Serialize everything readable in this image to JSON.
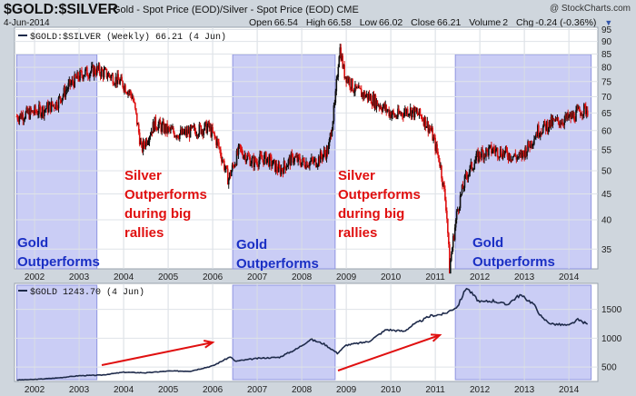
{
  "header": {
    "symbol": "$GOLD:$SILVER",
    "description": "Gold - Spot Price (EOD)/Silver - Spot Price (EOD) CME",
    "logo": "@ StockCharts.com",
    "date": "4-Jun-2014",
    "open_label": "Open",
    "open": "66.54",
    "high_label": "High",
    "high": "66.58",
    "low_label": "Low",
    "low": "66.02",
    "close_label": "Close",
    "close": "66.21",
    "volume_label": "Volume",
    "volume": "2",
    "chg_label": "Chg",
    "chg": "-0.24 (-0.36%)"
  },
  "colors": {
    "background": "#cfd6dd",
    "panel": "#ffffff",
    "shade": "#b8bcf2",
    "up": "#111111",
    "down": "#dd1111",
    "gold_line": "#1e2a4a",
    "annotation_red": "#e01010",
    "annotation_blue": "#1a2fc4"
  },
  "chart_data": [
    {
      "type": "candlestick",
      "title": "$GOLD:$SILVER (Weekly) 66.21 (4 Jun)",
      "x_tick_labels": [
        "2002",
        "2003",
        "2004",
        "2005",
        "2006",
        "2007",
        "2008",
        "2009",
        "2010",
        "2011",
        "2012",
        "2013",
        "2014"
      ],
      "y_tick_labels": [
        "35",
        "40",
        "45",
        "50",
        "55",
        "60",
        "65",
        "70",
        "75",
        "80",
        "85",
        "90",
        "95"
      ],
      "y_scale": "log",
      "ylim": [
        32,
        96
      ],
      "series_points": [
        [
          "2001.6",
          64
        ],
        [
          "2001.9",
          65
        ],
        [
          "2002.2",
          66
        ],
        [
          "2002.5",
          68
        ],
        [
          "2002.8",
          74
        ],
        [
          "2003.1",
          78
        ],
        [
          "2003.4",
          79
        ],
        [
          "2003.7",
          77
        ],
        [
          "2004.0",
          74
        ],
        [
          "2004.2",
          70
        ],
        [
          "2004.4",
          55
        ],
        [
          "2004.7",
          62
        ],
        [
          "2005.0",
          60
        ],
        [
          "2005.3",
          59
        ],
        [
          "2005.6",
          60
        ],
        [
          "2005.9",
          61
        ],
        [
          "2006.1",
          57
        ],
        [
          "2006.35",
          48
        ],
        [
          "2006.6",
          55
        ],
        [
          "2006.9",
          52
        ],
        [
          "2007.2",
          53
        ],
        [
          "2007.5",
          50
        ],
        [
          "2007.8",
          53
        ],
        [
          "2008.0",
          52
        ],
        [
          "2008.3",
          52
        ],
        [
          "2008.6",
          55
        ],
        [
          "2008.75",
          68
        ],
        [
          "2008.85",
          88
        ],
        [
          "2008.95",
          78
        ],
        [
          "2009.2",
          72
        ],
        [
          "2009.5",
          70
        ],
        [
          "2009.8",
          67
        ],
        [
          "2010.1",
          64
        ],
        [
          "2010.4",
          66
        ],
        [
          "2010.7",
          64
        ],
        [
          "2010.9",
          60
        ],
        [
          "2011.1",
          52
        ],
        [
          "2011.25",
          42
        ],
        [
          "2011.32",
          32
        ],
        [
          "2011.5",
          42
        ],
        [
          "2011.7",
          49
        ],
        [
          "2012.0",
          54
        ],
        [
          "2012.3",
          55
        ],
        [
          "2012.6",
          54
        ],
        [
          "2012.9",
          53
        ],
        [
          "2013.1",
          56
        ],
        [
          "2013.3",
          60
        ],
        [
          "2013.6",
          62
        ],
        [
          "2013.9",
          63
        ],
        [
          "2014.1",
          64
        ],
        [
          "2014.3",
          66
        ],
        [
          "2014.42",
          66
        ]
      ],
      "annotations": [
        {
          "lines": [
            "Silver",
            "Outperforms",
            "during big",
            "rallies"
          ],
          "color": "red",
          "at": "2004.4"
        },
        {
          "lines": [
            "Silver",
            "Outperforms",
            "during big",
            "rallies"
          ],
          "color": "red",
          "at": "2009.0"
        },
        {
          "lines": [
            "Gold",
            "Outperforms"
          ],
          "color": "blue",
          "at": "2001.6"
        },
        {
          "lines": [
            "Gold",
            "Outperforms"
          ],
          "color": "blue",
          "at": "2006.5"
        },
        {
          "lines": [
            "Gold",
            "Outperforms"
          ],
          "color": "blue",
          "at": "2012.1"
        }
      ],
      "shaded_periods": [
        [
          "2001.6",
          "2003.4"
        ],
        [
          "2006.45",
          "2008.75"
        ],
        [
          "2011.45",
          "2014.5"
        ]
      ]
    },
    {
      "type": "line",
      "title": "$GOLD 1243.70 (4 Jun)",
      "x_tick_labels": [
        "2002",
        "2003",
        "2004",
        "2005",
        "2006",
        "2007",
        "2008",
        "2009",
        "2010",
        "2011",
        "2012",
        "2013",
        "2014"
      ],
      "y_tick_labels": [
        "500",
        "1000",
        "1500"
      ],
      "ylim": [
        250,
        1950
      ],
      "series": [
        {
          "values": [
            [
              "2001.6",
              275
            ],
            [
              "2002.0",
              285
            ],
            [
              "2002.5",
              310
            ],
            [
              "2003.0",
              350
            ],
            [
              "2003.5",
              360
            ],
            [
              "2004.0",
              410
            ],
            [
              "2004.5",
              400
            ],
            [
              "2005.0",
              430
            ],
            [
              "2005.5",
              430
            ],
            [
              "2006.0",
              520
            ],
            [
              "2006.4",
              680
            ],
            [
              "2006.5",
              600
            ],
            [
              "2007.0",
              650
            ],
            [
              "2007.5",
              670
            ],
            [
              "2007.9",
              820
            ],
            [
              "2008.2",
              980
            ],
            [
              "2008.5",
              900
            ],
            [
              "2008.8",
              740
            ],
            [
              "2009.0",
              880
            ],
            [
              "2009.5",
              940
            ],
            [
              "2009.9",
              1150
            ],
            [
              "2010.3",
              1120
            ],
            [
              "2010.5",
              1230
            ],
            [
              "2010.9",
              1390
            ],
            [
              "2011.2",
              1420
            ],
            [
              "2011.5",
              1550
            ],
            [
              "2011.7",
              1880
            ],
            [
              "2012.0",
              1620
            ],
            [
              "2012.3",
              1650
            ],
            [
              "2012.6",
              1580
            ],
            [
              "2012.9",
              1750
            ],
            [
              "2013.2",
              1600
            ],
            [
              "2013.4",
              1350
            ],
            [
              "2013.6",
              1250
            ],
            [
              "2014.0",
              1220
            ],
            [
              "2014.2",
              1320
            ],
            [
              "2014.42",
              1244
            ]
          ]
        }
      ],
      "shaded_periods": [
        [
          "2001.6",
          "2003.4"
        ],
        [
          "2006.45",
          "2008.75"
        ],
        [
          "2011.45",
          "2014.5"
        ]
      ]
    }
  ]
}
